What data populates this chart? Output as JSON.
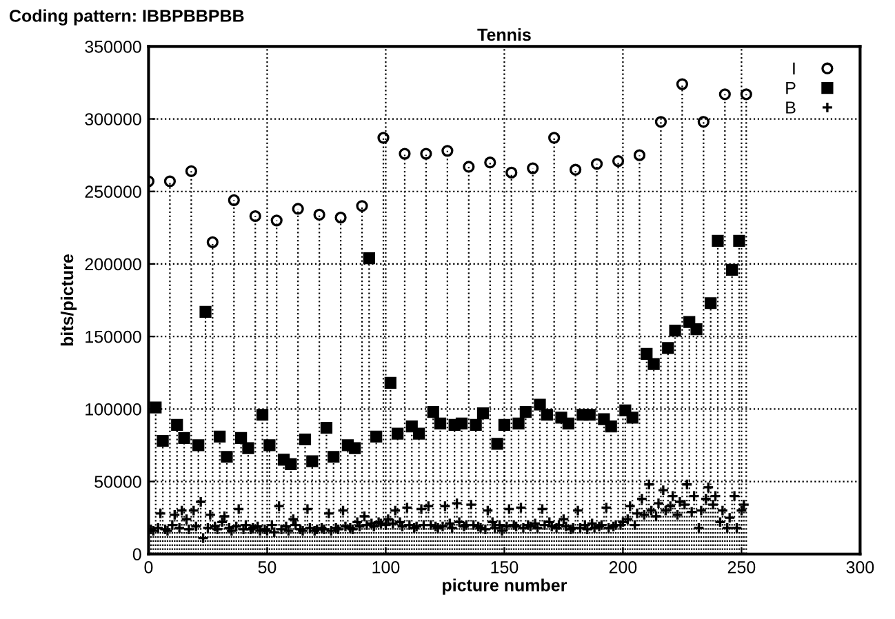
{
  "chart_data": {
    "type": "lollipop",
    "title": "Tennis",
    "annotations": [
      "Coding pattern: IBBPBBPBB"
    ],
    "xlabel": "picture number",
    "ylabel": "bits/picture",
    "xlim": [
      0,
      300
    ],
    "xticks": [
      0,
      50,
      100,
      150,
      200,
      250,
      300
    ],
    "ylim": [
      0,
      350000
    ],
    "yticks": [
      0,
      50000,
      100000,
      150000,
      200000,
      250000,
      300000,
      350000
    ],
    "grid": true,
    "legend": "top right",
    "line_style": "dotted",
    "series": [
      {
        "name": "I",
        "color": "#000000",
        "marker": "circle",
        "x": [
          0,
          9,
          18,
          27,
          36,
          45,
          54,
          63,
          72,
          81,
          90,
          99,
          108,
          117,
          126,
          135,
          144,
          153,
          162,
          171,
          180,
          189,
          198,
          207,
          216,
          225,
          234,
          243,
          252
        ],
        "values": [
          257000,
          257000,
          264000,
          215000,
          244000,
          233000,
          230000,
          238000,
          234000,
          232000,
          240000,
          287000,
          276000,
          276000,
          278000,
          267000,
          270000,
          263000,
          266000,
          287000,
          265000,
          269000,
          271000,
          275000,
          298000,
          324000,
          298000,
          317000,
          317000
        ]
      },
      {
        "name": "P",
        "color": "#000000",
        "marker": "square",
        "x": [
          3,
          6,
          12,
          15,
          21,
          24,
          30,
          33,
          39,
          42,
          48,
          51,
          57,
          60,
          66,
          69,
          75,
          78,
          84,
          87,
          93,
          96,
          102,
          105,
          111,
          114,
          120,
          123,
          129,
          132,
          138,
          141,
          147,
          150,
          156,
          159,
          165,
          168,
          174,
          177,
          183,
          186,
          192,
          195,
          201,
          204,
          210,
          213,
          219,
          222,
          228,
          231,
          237,
          240,
          246,
          249
        ],
        "values": [
          101000,
          78000,
          89000,
          80000,
          75000,
          167000,
          81000,
          67000,
          80000,
          73000,
          96000,
          75000,
          65000,
          62000,
          79000,
          64000,
          87000,
          67000,
          75000,
          73000,
          204000,
          81000,
          118000,
          83000,
          88000,
          83000,
          98000,
          90000,
          89000,
          90000,
          89000,
          97000,
          76000,
          89000,
          90000,
          98000,
          103000,
          96000,
          94000,
          90000,
          96000,
          96000,
          93000,
          88000,
          99000,
          94000,
          138000,
          131000,
          142000,
          154000,
          160000,
          155000,
          173000,
          216000,
          196000,
          216000
        ]
      },
      {
        "name": "B",
        "color": "#000000",
        "marker": "cross",
        "x": [
          1,
          2,
          4,
          5,
          7,
          8,
          10,
          11,
          13,
          14,
          16,
          17,
          19,
          20,
          22,
          23,
          25,
          26,
          28,
          29,
          31,
          32,
          34,
          35,
          37,
          38,
          40,
          41,
          43,
          44,
          46,
          47,
          49,
          50,
          52,
          53,
          55,
          56,
          58,
          59,
          61,
          62,
          64,
          65,
          67,
          68,
          70,
          71,
          73,
          74,
          76,
          77,
          79,
          80,
          82,
          83,
          85,
          86,
          88,
          89,
          91,
          92,
          94,
          95,
          97,
          98,
          100,
          101,
          103,
          104,
          106,
          107,
          109,
          110,
          112,
          113,
          115,
          116,
          118,
          119,
          121,
          122,
          124,
          125,
          127,
          128,
          130,
          131,
          133,
          134,
          136,
          137,
          139,
          140,
          142,
          143,
          145,
          146,
          148,
          149,
          151,
          152,
          154,
          155,
          157,
          158,
          160,
          161,
          163,
          164,
          166,
          167,
          169,
          170,
          172,
          173,
          175,
          176,
          178,
          179,
          181,
          182,
          184,
          185,
          187,
          188,
          190,
          191,
          193,
          194,
          196,
          197,
          199,
          200,
          202,
          203,
          205,
          206,
          208,
          209,
          211,
          212,
          214,
          215,
          217,
          218,
          220,
          221,
          223,
          224,
          226,
          227,
          229,
          230,
          232,
          233,
          235,
          236,
          238,
          239,
          241,
          242,
          244,
          245,
          247,
          248,
          250,
          251
        ],
        "values": [
          17000,
          16000,
          18000,
          28000,
          17000,
          16000,
          20000,
          27000,
          18000,
          30000,
          24000,
          17000,
          30000,
          19000,
          36000,
          11000,
          18000,
          27000,
          19000,
          17000,
          22000,
          26000,
          18000,
          16000,
          19000,
          31000,
          17000,
          20000,
          17000,
          18000,
          19000,
          16000,
          17000,
          16000,
          20000,
          15000,
          33000,
          17000,
          19000,
          16000,
          24000,
          20000,
          17000,
          16000,
          31000,
          18000,
          16000,
          17000,
          18000,
          17000,
          28000,
          16000,
          18000,
          17000,
          30000,
          19000,
          18000,
          17000,
          22000,
          19000,
          26000,
          20000,
          21000,
          19000,
          22000,
          21000,
          20000,
          24000,
          21000,
          30000,
          22000,
          19000,
          32000,
          20000,
          18000,
          19000,
          31000,
          20000,
          33000,
          20000,
          19000,
          18000,
          19000,
          33000,
          21000,
          18000,
          35000,
          22000,
          19000,
          20000,
          34000,
          20000,
          19000,
          18000,
          17000,
          30000,
          22000,
          18000,
          20000,
          16000,
          19000,
          31000,
          20000,
          19000,
          32000,
          18000,
          20000,
          19000,
          21000,
          18000,
          31000,
          20000,
          22000,
          19000,
          18000,
          20000,
          24000,
          19000,
          17000,
          18000,
          30000,
          18000,
          20000,
          17000,
          21000,
          18000,
          19000,
          20000,
          32000,
          18000,
          19000,
          20000,
          20000,
          22000,
          24000,
          33000,
          20000,
          28000,
          38000,
          27000,
          48000,
          30000,
          26000,
          35000,
          44000,
          30000,
          33000,
          40000,
          27000,
          36000,
          34000,
          48000,
          29000,
          40000,
          18000,
          30000,
          38000,
          46000,
          34000,
          40000,
          22000,
          30000,
          18000,
          25000,
          40000,
          18000,
          30000,
          34000
        ]
      }
    ]
  }
}
